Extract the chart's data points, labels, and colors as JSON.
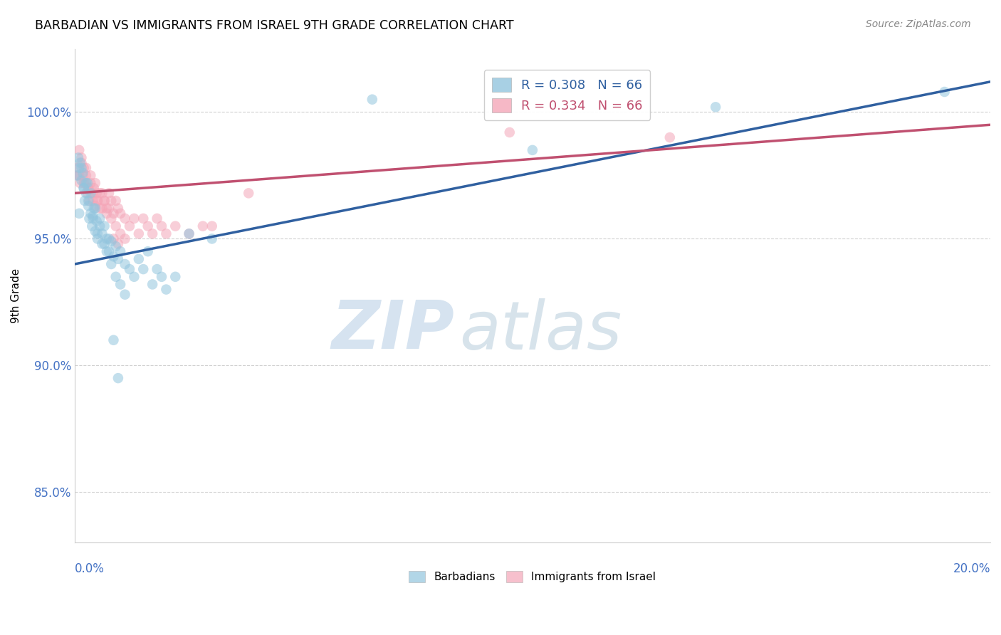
{
  "title": "BARBADIAN VS IMMIGRANTS FROM ISRAEL 9TH GRADE CORRELATION CHART",
  "source": "Source: ZipAtlas.com",
  "ylabel": "9th Grade",
  "xlim": [
    0.0,
    20.0
  ],
  "ylim": [
    83.0,
    102.5
  ],
  "yticks": [
    85.0,
    90.0,
    95.0,
    100.0
  ],
  "ytick_labels": [
    "85.0%",
    "90.0%",
    "95.0%",
    "100.0%"
  ],
  "r_blue": 0.308,
  "r_pink": 0.334,
  "n_blue": 66,
  "n_pink": 66,
  "blue_color": "#92c5de",
  "pink_color": "#f4a6b8",
  "blue_line_color": "#3060a0",
  "pink_line_color": "#c05070",
  "legend_blue_label": "Barbadians",
  "legend_pink_label": "Immigrants from Israel",
  "watermark_zip": "ZIP",
  "watermark_atlas": "atlas",
  "blue_x": [
    0.05,
    0.08,
    0.1,
    0.12,
    0.15,
    0.18,
    0.2,
    0.22,
    0.25,
    0.28,
    0.3,
    0.32,
    0.35,
    0.38,
    0.4,
    0.42,
    0.45,
    0.48,
    0.5,
    0.55,
    0.6,
    0.65,
    0.7,
    0.75,
    0.8,
    0.85,
    0.9,
    0.95,
    1.0,
    1.1,
    1.2,
    1.3,
    1.4,
    1.5,
    1.6,
    1.7,
    1.8,
    1.9,
    2.0,
    2.2,
    2.5,
    3.0,
    0.1,
    0.2,
    0.3,
    0.4,
    0.5,
    0.6,
    0.7,
    0.8,
    0.9,
    1.0,
    1.1,
    0.15,
    0.25,
    0.35,
    0.45,
    0.55,
    0.65,
    0.75,
    0.85,
    0.95,
    6.5,
    19.0,
    14.0,
    10.0
  ],
  "blue_y": [
    97.5,
    98.2,
    97.8,
    98.0,
    97.3,
    97.6,
    97.0,
    96.5,
    96.8,
    97.2,
    96.3,
    95.8,
    96.0,
    95.5,
    95.9,
    96.2,
    95.3,
    95.7,
    95.0,
    95.5,
    95.2,
    94.8,
    95.0,
    94.5,
    94.9,
    94.3,
    94.7,
    94.2,
    94.5,
    94.0,
    93.8,
    93.5,
    94.2,
    93.8,
    94.5,
    93.2,
    93.8,
    93.5,
    93.0,
    93.5,
    95.2,
    95.0,
    96.0,
    97.0,
    96.5,
    95.8,
    95.2,
    94.8,
    94.5,
    94.0,
    93.5,
    93.2,
    92.8,
    97.8,
    97.2,
    96.8,
    96.2,
    95.8,
    95.5,
    95.0,
    91.0,
    89.5,
    100.5,
    100.8,
    100.2,
    98.5
  ],
  "pink_x": [
    0.05,
    0.08,
    0.1,
    0.12,
    0.15,
    0.18,
    0.2,
    0.22,
    0.25,
    0.28,
    0.3,
    0.32,
    0.35,
    0.38,
    0.4,
    0.42,
    0.45,
    0.48,
    0.5,
    0.55,
    0.6,
    0.65,
    0.7,
    0.75,
    0.8,
    0.85,
    0.9,
    0.95,
    1.0,
    1.1,
    1.2,
    1.3,
    1.4,
    1.5,
    1.6,
    1.7,
    1.8,
    1.9,
    2.0,
    2.2,
    2.5,
    3.0,
    0.1,
    0.2,
    0.3,
    0.4,
    0.5,
    0.6,
    0.7,
    0.8,
    0.9,
    1.0,
    1.1,
    0.15,
    0.25,
    0.35,
    0.45,
    0.55,
    0.65,
    0.75,
    0.85,
    0.95,
    9.5,
    3.8,
    13.0,
    2.8
  ],
  "pink_y": [
    97.8,
    97.5,
    98.5,
    97.2,
    98.0,
    97.5,
    97.8,
    97.2,
    97.5,
    96.8,
    97.0,
    96.5,
    97.2,
    96.8,
    96.5,
    97.0,
    96.3,
    96.8,
    96.5,
    96.2,
    96.8,
    96.5,
    96.2,
    96.8,
    96.5,
    96.0,
    96.5,
    96.2,
    96.0,
    95.8,
    95.5,
    95.8,
    95.2,
    95.8,
    95.5,
    95.2,
    95.8,
    95.5,
    95.2,
    95.5,
    95.2,
    95.5,
    97.5,
    97.2,
    97.0,
    96.8,
    96.5,
    96.2,
    96.0,
    95.8,
    95.5,
    95.2,
    95.0,
    98.2,
    97.8,
    97.5,
    97.2,
    96.8,
    96.5,
    96.2,
    95.0,
    94.8,
    99.2,
    96.8,
    99.0,
    95.5
  ],
  "blue_trend_x0": 0.0,
  "blue_trend_y0": 94.0,
  "blue_trend_x1": 20.0,
  "blue_trend_y1": 101.2,
  "pink_trend_x0": 0.0,
  "pink_trend_y0": 96.8,
  "pink_trend_x1": 20.0,
  "pink_trend_y1": 99.5
}
